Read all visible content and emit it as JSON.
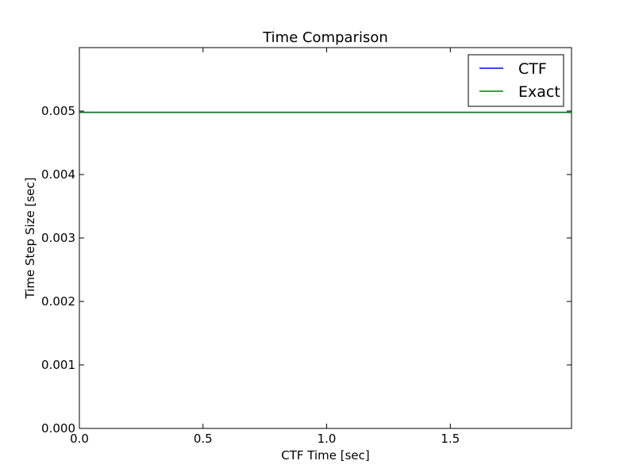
{
  "chart_data": {
    "type": "line",
    "title": "Time Comparison",
    "xlabel": "CTF Time [sec]",
    "ylabel": "Time Step Size [sec]",
    "xlim": [
      0.0,
      1.99
    ],
    "ylim": [
      0.0,
      0.006
    ],
    "x_ticks": [
      0.0,
      0.5,
      1.0,
      1.5
    ],
    "x_tick_labels": [
      "0.0",
      "0.5",
      "1.0",
      "1.5"
    ],
    "y_ticks": [
      0.0,
      0.001,
      0.002,
      0.003,
      0.004,
      0.005
    ],
    "y_tick_labels": [
      "0.000",
      "0.001",
      "0.002",
      "0.003",
      "0.004",
      "0.005"
    ],
    "grid": false,
    "legend_position": "top-right",
    "series": [
      {
        "name": "CTF",
        "color": "#0000ff",
        "x": [
          0.0,
          1.99
        ],
        "y": [
          0.00498,
          0.00498
        ]
      },
      {
        "name": "Exact",
        "color": "#008000",
        "x": [
          0.0,
          1.99
        ],
        "y": [
          0.00498,
          0.00498
        ]
      }
    ]
  }
}
